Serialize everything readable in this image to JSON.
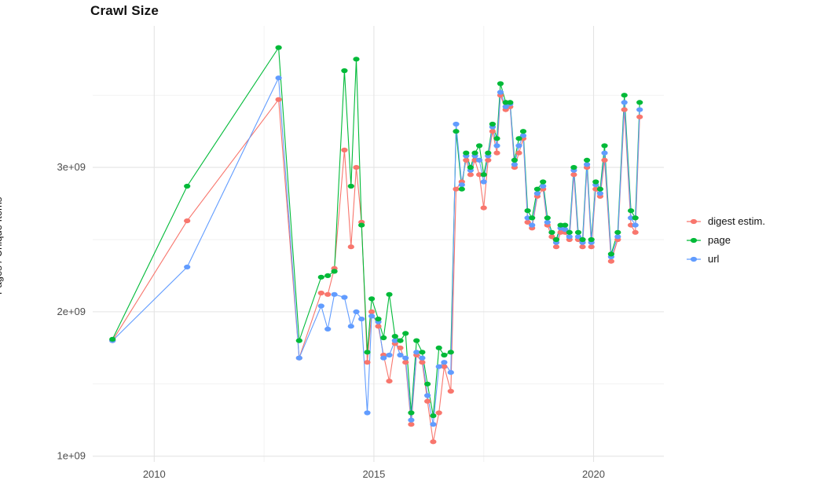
{
  "chart": {
    "title": "Crawl Size",
    "ylabel": "Pages / Unique Items"
  },
  "colors": {
    "background": "#ffffff",
    "grid_major": "#e4e4e4",
    "grid_minor": "#f2f2f2",
    "axis_text": "#4d4d4d",
    "text": "#111111"
  },
  "chart_data": {
    "type": "line",
    "title": "Crawl Size",
    "xlabel": "",
    "ylabel": "Pages / Unique Items",
    "y_unit": "billions of items (1e9)",
    "grid": true,
    "legend_position": "right",
    "xlim": [
      2008.6,
      2021.6
    ],
    "ylim": [
      0.96,
      3.98
    ],
    "x_ticks": [
      {
        "value": 2010,
        "label": "2010"
      },
      {
        "value": 2015,
        "label": "2015"
      },
      {
        "value": 2020,
        "label": "2020"
      }
    ],
    "y_ticks": [
      {
        "value": 1,
        "label": "1e+09"
      },
      {
        "value": 2,
        "label": "2e+09"
      },
      {
        "value": 3,
        "label": "3e+09"
      }
    ],
    "x_minor": [
      2012.5,
      2017.5
    ],
    "y_minor": [
      1.5,
      2.5,
      3.5
    ],
    "x": [
      2009.05,
      2010.75,
      2012.83,
      2013.3,
      2013.8,
      2013.95,
      2014.1,
      2014.33,
      2014.48,
      2014.6,
      2014.72,
      2014.85,
      2014.95,
      2015.1,
      2015.22,
      2015.35,
      2015.48,
      2015.6,
      2015.72,
      2015.85,
      2015.97,
      2016.1,
      2016.22,
      2016.35,
      2016.48,
      2016.6,
      2016.75,
      2016.87,
      2017.0,
      2017.1,
      2017.2,
      2017.3,
      2017.4,
      2017.5,
      2017.6,
      2017.7,
      2017.8,
      2017.88,
      2018.0,
      2018.1,
      2018.2,
      2018.3,
      2018.4,
      2018.5,
      2018.6,
      2018.72,
      2018.85,
      2018.95,
      2019.05,
      2019.15,
      2019.25,
      2019.35,
      2019.45,
      2019.55,
      2019.65,
      2019.75,
      2019.85,
      2019.95,
      2020.05,
      2020.15,
      2020.25,
      2020.4,
      2020.55,
      2020.7,
      2020.85,
      2020.95,
      2021.05
    ],
    "series": [
      {
        "name": "digest estim.",
        "color": "#F8766D",
        "values": [
          1.8,
          2.63,
          3.47,
          1.68,
          2.13,
          2.12,
          2.3,
          3.12,
          2.45,
          3.0,
          2.62,
          1.65,
          2.0,
          1.9,
          1.7,
          1.52,
          1.78,
          1.75,
          1.65,
          1.22,
          1.7,
          1.65,
          1.38,
          1.1,
          1.3,
          1.62,
          1.45,
          2.85,
          2.9,
          3.05,
          2.95,
          3.05,
          2.95,
          2.72,
          3.05,
          3.25,
          3.1,
          3.5,
          3.4,
          3.42,
          3.0,
          3.1,
          3.2,
          2.62,
          2.58,
          2.8,
          2.85,
          2.6,
          2.52,
          2.45,
          2.55,
          2.55,
          2.5,
          2.95,
          2.5,
          2.45,
          3.0,
          2.45,
          2.85,
          2.8,
          3.05,
          2.35,
          2.5,
          3.4,
          2.6,
          2.55,
          3.35
        ]
      },
      {
        "name": "page",
        "color": "#00BA38",
        "values": [
          1.81,
          2.87,
          3.83,
          1.8,
          2.24,
          2.25,
          2.28,
          3.67,
          2.87,
          3.75,
          2.6,
          1.72,
          2.09,
          1.95,
          1.82,
          2.12,
          1.83,
          1.8,
          1.85,
          1.3,
          1.8,
          1.72,
          1.5,
          1.28,
          1.75,
          1.7,
          1.72,
          3.25,
          2.85,
          3.1,
          3.0,
          3.1,
          3.15,
          2.95,
          3.1,
          3.3,
          3.2,
          3.58,
          3.45,
          3.45,
          3.05,
          3.2,
          3.25,
          2.7,
          2.65,
          2.85,
          2.9,
          2.65,
          2.55,
          2.5,
          2.6,
          2.6,
          2.55,
          3.0,
          2.55,
          2.5,
          3.05,
          2.5,
          2.9,
          2.85,
          3.15,
          2.4,
          2.55,
          3.5,
          2.7,
          2.65,
          3.45
        ]
      },
      {
        "name": "url",
        "color": "#619CFF",
        "values": [
          1.8,
          2.31,
          3.62,
          1.68,
          2.04,
          1.88,
          2.12,
          2.1,
          1.9,
          2.0,
          1.95,
          1.3,
          1.97,
          1.93,
          1.68,
          1.7,
          1.8,
          1.7,
          1.68,
          1.25,
          1.72,
          1.68,
          1.42,
          1.22,
          1.62,
          1.65,
          1.58,
          3.3,
          2.88,
          3.08,
          2.98,
          3.08,
          3.05,
          2.9,
          3.08,
          3.28,
          3.15,
          3.52,
          3.42,
          3.44,
          3.02,
          3.15,
          3.22,
          2.65,
          2.6,
          2.82,
          2.87,
          2.62,
          2.55,
          2.48,
          2.58,
          2.57,
          2.52,
          2.98,
          2.52,
          2.48,
          3.02,
          2.48,
          2.88,
          2.82,
          3.1,
          2.38,
          2.52,
          3.45,
          2.65,
          2.6,
          3.4
        ]
      }
    ]
  }
}
